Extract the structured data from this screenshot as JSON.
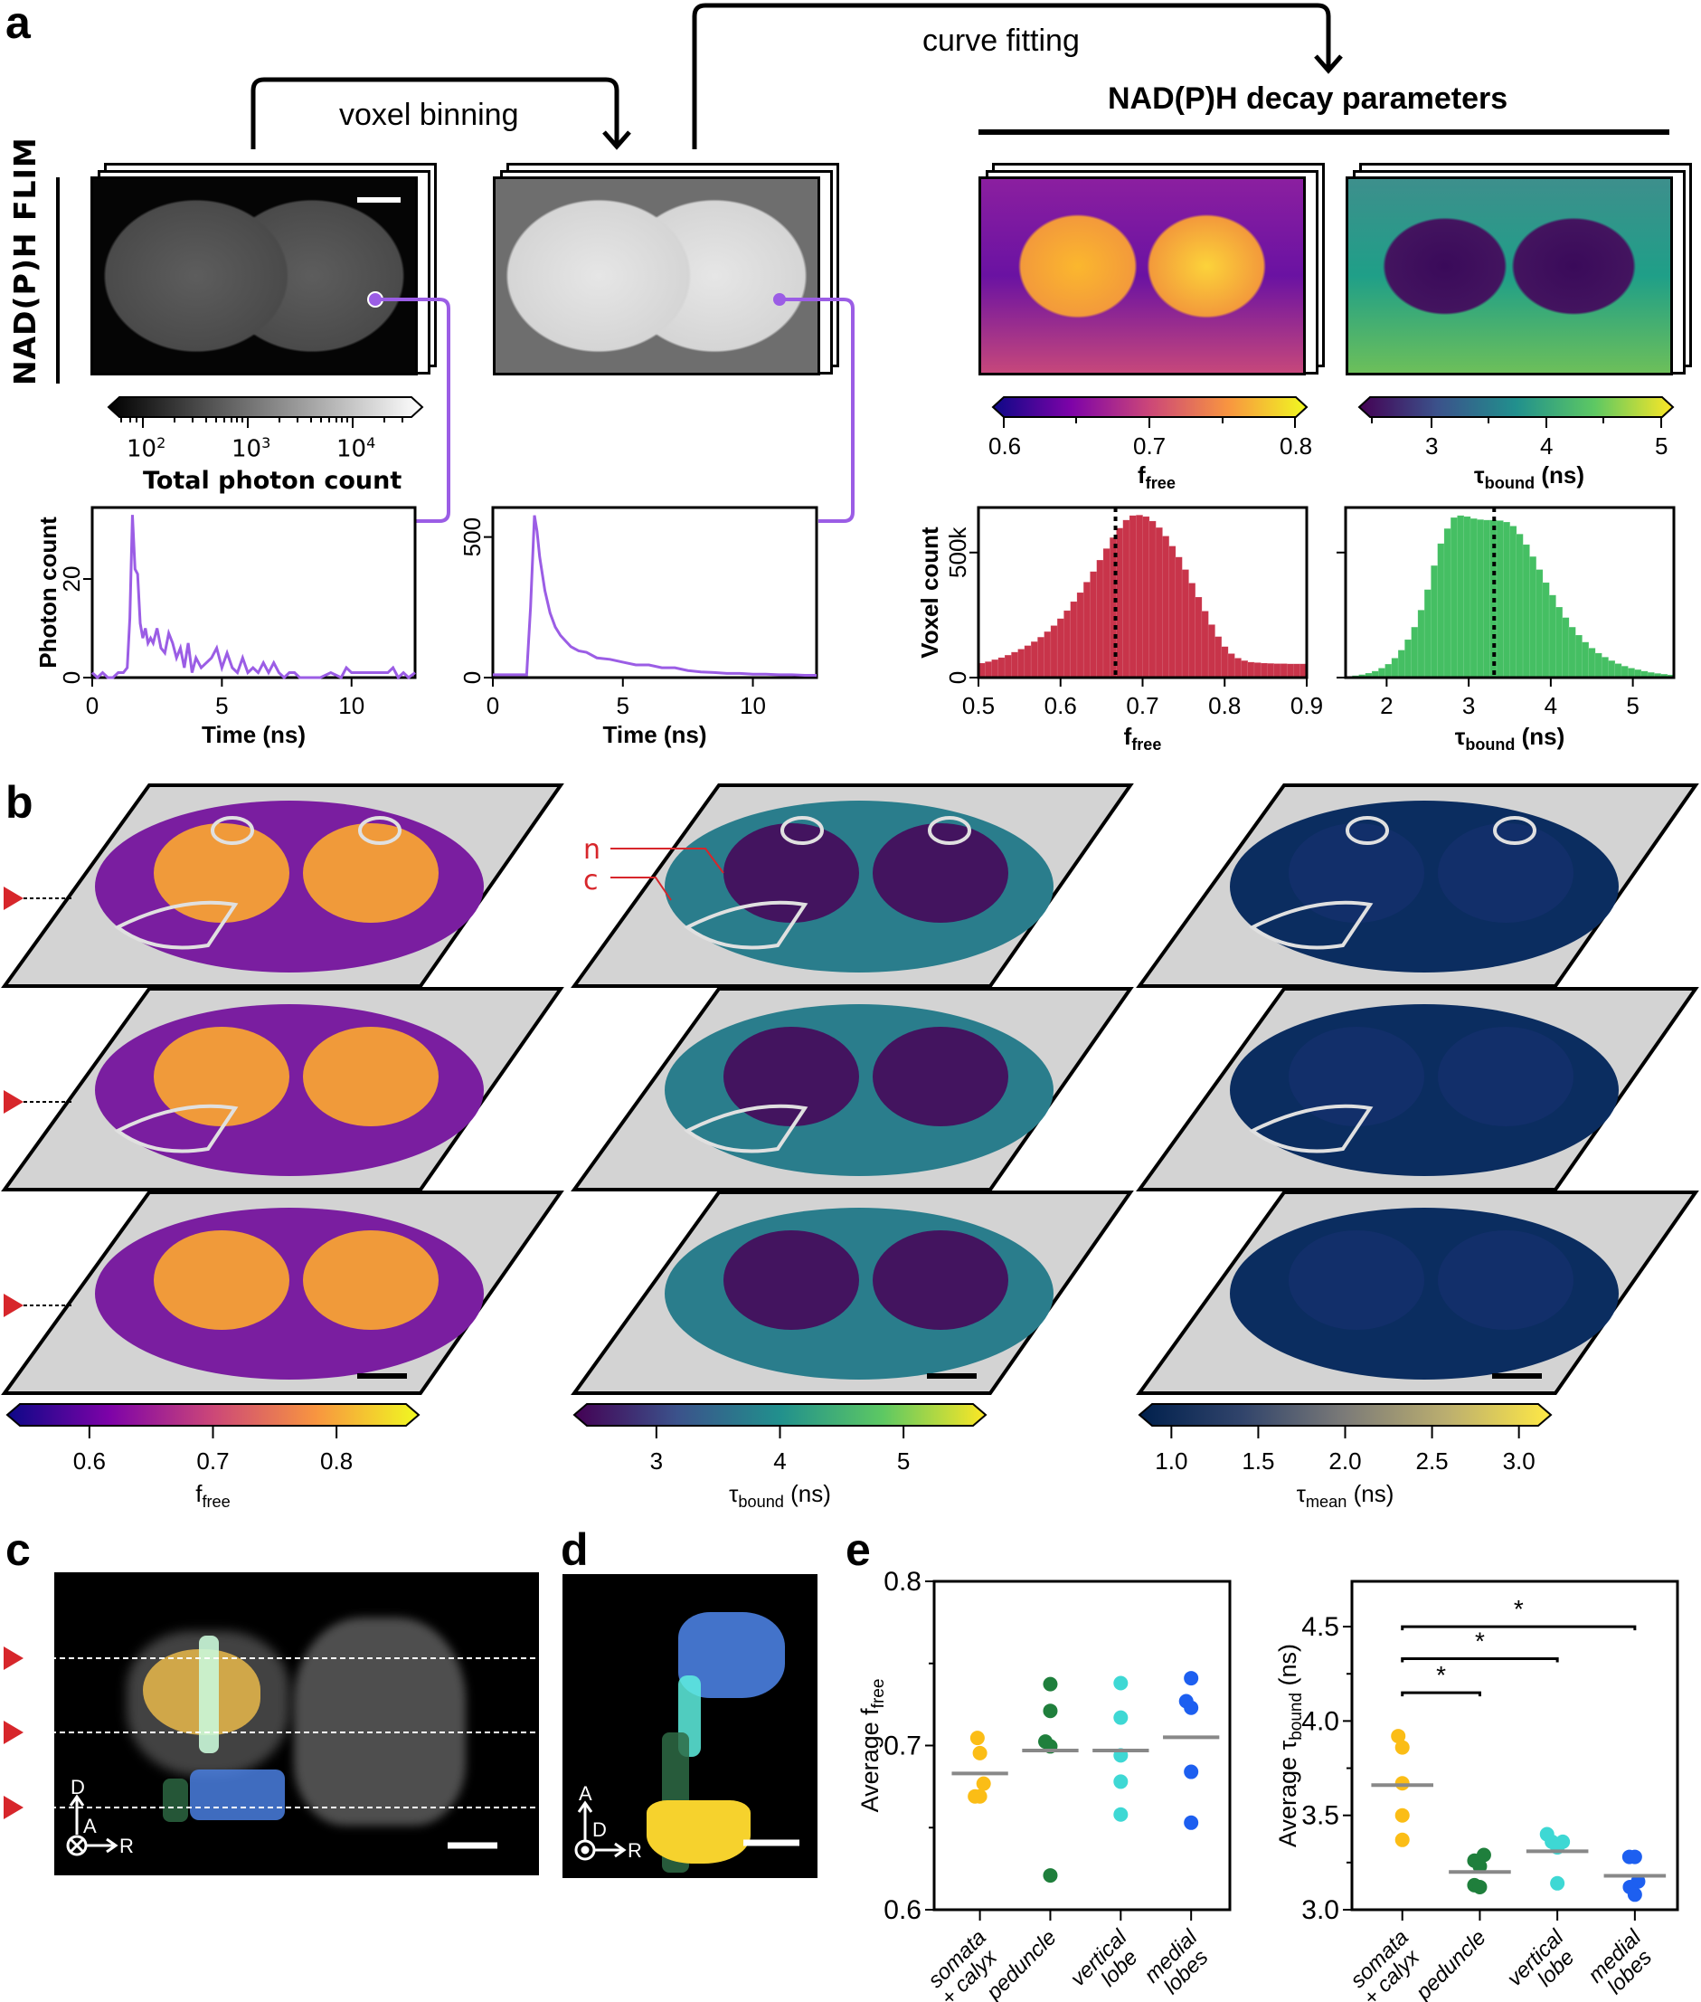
{
  "panel_labels": {
    "a": "a",
    "b": "b",
    "c": "c",
    "d": "d",
    "e": "e"
  },
  "panel_a": {
    "row_label": "NAD(P)H FLIM",
    "arrow_binning": "voxel binning",
    "arrow_fitting": "curve fitting",
    "params_header": "NAD(P)H decay parameters",
    "photon_colorbar": {
      "label": "Total photon count",
      "ticks": [
        "10",
        "10",
        "10"
      ],
      "exponents": [
        "2",
        "3",
        "4"
      ],
      "colors": [
        "#000000",
        "#ffffff"
      ]
    },
    "ffree_colorbar": {
      "ticks": [
        "0.6",
        "0.7",
        "0.8"
      ],
      "label_main": "f",
      "label_sub": "free"
    },
    "tau_colorbar": {
      "ticks": [
        "3",
        "4",
        "5"
      ],
      "label_main": "τ",
      "label_sub": "bound",
      "label_unit": " (ns)"
    },
    "trace_color": "#9b5de5"
  },
  "panel_b": {
    "annotation_n": "n",
    "annotation_c": "c",
    "annotation_color": "#d7262b",
    "marker_color": "#d7262b",
    "colorbars": [
      {
        "ticks": [
          "0.6",
          "0.7",
          "0.8"
        ],
        "label_main": "f",
        "label_sub": "free",
        "label_unit": ""
      },
      {
        "ticks": [
          "3",
          "4",
          "5"
        ],
        "label_main": "τ",
        "label_sub": "bound",
        "label_unit": " (ns)"
      },
      {
        "ticks": [
          "1.0",
          "1.5",
          "2.0",
          "2.5",
          "3.0"
        ],
        "label_main": "τ",
        "label_sub": "mean",
        "label_unit": " (ns)"
      }
    ]
  },
  "panel_c": {
    "axes": {
      "up": "D",
      "mid": "A",
      "right": "R"
    },
    "colors": {
      "somata": "#f5c242",
      "peduncle": "#2e7d4f",
      "vertical": "#5ef0e0",
      "medial": "#4a7fe0"
    }
  },
  "panel_d": {
    "axes": {
      "up": "A",
      "mid": "D",
      "right": "R"
    }
  },
  "chart_data": [
    {
      "id": "photon-trace-raw",
      "type": "line",
      "title": "",
      "xlabel": "Time (ns)",
      "ylabel": "Photon count",
      "xlim": [
        0,
        12.45
      ],
      "ylim": [
        0,
        34.5
      ],
      "xticks": [
        "0",
        "5",
        "10"
      ],
      "yticks": [
        "0",
        "20"
      ],
      "series": [
        {
          "name": "raw voxel decay",
          "color": "#9b5de5",
          "x": [
            0,
            0.2,
            0.4,
            0.6,
            0.8,
            1.0,
            1.2,
            1.35,
            1.45,
            1.55,
            1.65,
            1.75,
            1.85,
            1.95,
            2.05,
            2.15,
            2.25,
            2.35,
            2.5,
            2.65,
            2.8,
            2.95,
            3.1,
            3.25,
            3.4,
            3.55,
            3.7,
            3.85,
            4.0,
            4.2,
            4.4,
            4.6,
            4.8,
            5.0,
            5.2,
            5.4,
            5.6,
            5.8,
            6.0,
            6.2,
            6.4,
            6.6,
            6.8,
            7.0,
            7.2,
            7.4,
            7.6,
            7.8,
            8.0,
            8.4,
            8.8,
            9.2,
            9.6,
            9.8,
            10.0,
            10.5,
            11.0,
            11.4,
            11.6,
            11.8,
            12.0,
            12.2,
            12.45
          ],
          "y": [
            1,
            0,
            1,
            0,
            0,
            1,
            1,
            2,
            12,
            33,
            22,
            21,
            11,
            8,
            10,
            7,
            8,
            7,
            10,
            6,
            5,
            9,
            7,
            4,
            6,
            2,
            7,
            1,
            4,
            2,
            3,
            4,
            6,
            2,
            5,
            2,
            1,
            4,
            1,
            2,
            1,
            3,
            1,
            3,
            1,
            0,
            1,
            1,
            0,
            0,
            0,
            1,
            0,
            2,
            1,
            1,
            1,
            1,
            2,
            0,
            1,
            0,
            1
          ]
        }
      ]
    },
    {
      "id": "photon-trace-binned",
      "type": "line",
      "title": "",
      "xlabel": "Time (ns)",
      "ylabel": "",
      "xlim": [
        0,
        12.45
      ],
      "ylim": [
        0,
        605
      ],
      "xticks": [
        "0",
        "5",
        "10"
      ],
      "yticks": [
        "0",
        "500"
      ],
      "series": [
        {
          "name": "binned voxel decay",
          "color": "#9b5de5",
          "x": [
            0,
            0.5,
            1.0,
            1.3,
            1.45,
            1.6,
            1.7,
            1.8,
            2.0,
            2.2,
            2.4,
            2.6,
            2.8,
            3.0,
            3.3,
            3.6,
            4.0,
            4.5,
            5.0,
            5.5,
            6.0,
            6.5,
            7.0,
            7.5,
            8.0,
            8.5,
            9.0,
            9.5,
            10.0,
            10.5,
            11.0,
            11.5,
            12.0,
            12.45
          ],
          "y": [
            10,
            10,
            10,
            10,
            250,
            577,
            520,
            430,
            310,
            230,
            180,
            150,
            130,
            110,
            95,
            90,
            70,
            65,
            55,
            45,
            45,
            35,
            35,
            25,
            20,
            18,
            15,
            15,
            12,
            12,
            10,
            10,
            8,
            8
          ]
        }
      ]
    },
    {
      "id": "ffree-histogram",
      "type": "bar",
      "title": "",
      "xlabel": "f_free",
      "ylabel": "Voxel count",
      "xlim": [
        0.5,
        0.9
      ],
      "ylim": [
        0,
        680000
      ],
      "xticks": [
        "0.5",
        "0.6",
        "0.7",
        "0.8",
        "0.9"
      ],
      "yticks": [
        "0",
        "500k"
      ],
      "bar_color": "#c8344a",
      "median_line": 0.667,
      "bin_width": 0.008,
      "bin_start": 0.5,
      "values": [
        58000,
        64000,
        72000,
        80000,
        90000,
        102000,
        114000,
        128000,
        144000,
        162000,
        184000,
        208000,
        236000,
        268000,
        304000,
        340000,
        382000,
        424000,
        470000,
        516000,
        560000,
        598000,
        630000,
        648000,
        650000,
        644000,
        626000,
        600000,
        566000,
        526000,
        482000,
        432000,
        378000,
        322000,
        266000,
        212000,
        164000,
        124000,
        96000,
        78000,
        68000,
        62000,
        60000,
        58000,
        57000,
        56000,
        56000,
        55000,
        55000,
        55000
      ]
    },
    {
      "id": "tau-bound-histogram",
      "type": "bar",
      "title": "",
      "xlabel": "τ_bound (ns)",
      "ylabel": "",
      "xlim": [
        1.5,
        5.5
      ],
      "ylim": [
        0,
        680000
      ],
      "xticks": [
        "2",
        "3",
        "4",
        "5"
      ],
      "yticks": [
        "",
        ""
      ],
      "bar_color": "#45bf63",
      "median_line": 3.31,
      "bin_width": 0.08,
      "bin_start": 1.5,
      "values": [
        5000,
        8000,
        12000,
        18000,
        26000,
        38000,
        54000,
        78000,
        110000,
        152000,
        202000,
        270000,
        352000,
        448000,
        536000,
        596000,
        640000,
        648000,
        644000,
        636000,
        632000,
        630000,
        630000,
        628000,
        622000,
        606000,
        574000,
        532000,
        484000,
        432000,
        380000,
        330000,
        282000,
        240000,
        202000,
        170000,
        142000,
        118000,
        98000,
        82000,
        68000,
        56000,
        46000,
        38000,
        32000,
        26000,
        21000,
        17000,
        14000,
        11000
      ]
    },
    {
      "id": "avg-ffree-scatter",
      "type": "scatter",
      "title": "",
      "xlabel": "",
      "ylabel": "Average f_free",
      "ylim": [
        0.6,
        0.8
      ],
      "yticks": [
        "0.6",
        "0.7",
        "0.8"
      ],
      "categories": [
        "somata + calyx",
        "peduncle",
        "vertical lobe",
        "medial lobes"
      ],
      "category_lines": [
        [
          "somata",
          "+ calyx"
        ],
        [
          "peduncle"
        ],
        [
          "vertical",
          "lobe"
        ],
        [
          "medial",
          "lobes"
        ]
      ],
      "colors": [
        "#fbbd16",
        "#1f7f3c",
        "#3ed8d4",
        "#1d5ff0"
      ],
      "series": [
        {
          "name": "somata + calyx",
          "values": [
            0.7046,
            0.6954,
            0.6768,
            0.669,
            0.669
          ],
          "offsets": [
            -0.1,
            0.0,
            0.15,
            -0.2,
            0.0
          ],
          "mean": 0.683
        },
        {
          "name": "peduncle",
          "values": [
            0.7374,
            0.7211,
            0.7024,
            0.6995,
            0.6209
          ],
          "offsets": [
            0,
            0,
            -0.2,
            0,
            0
          ],
          "mean": 0.697
        },
        {
          "name": "vertical lobe",
          "values": [
            0.738,
            0.717,
            0.694,
            0.678,
            0.658
          ],
          "offsets": [
            0,
            0,
            0,
            0,
            0
          ],
          "mean": 0.697
        },
        {
          "name": "medial lobes",
          "values": [
            0.741,
            0.727,
            0.723,
            0.684,
            0.653
          ],
          "offsets": [
            0,
            -0.2,
            0,
            0,
            0
          ],
          "mean": 0.705
        }
      ]
    },
    {
      "id": "avg-tau-bound-scatter",
      "type": "scatter",
      "title": "",
      "xlabel": "",
      "ylabel": "Average τ_bound (ns)",
      "ylim": [
        3.0,
        4.74
      ],
      "yticks": [
        "3.0",
        "3.5",
        "4.0",
        "4.5"
      ],
      "categories": [
        "somata + calyx",
        "peduncle",
        "vertical lobe",
        "medial lobes"
      ],
      "category_lines": [
        [
          "somata",
          "+ calyx"
        ],
        [
          "peduncle"
        ],
        [
          "vertical",
          "lobe"
        ],
        [
          "medial",
          "lobes"
        ]
      ],
      "colors": [
        "#fbbd16",
        "#1f7f3c",
        "#3ed8d4",
        "#1d5ff0"
      ],
      "series": [
        {
          "name": "somata + calyx",
          "values": [
            3.92,
            3.86,
            3.67,
            3.5,
            3.37
          ],
          "offsets": [
            -0.15,
            0,
            0,
            0,
            0
          ],
          "mean": 3.66
        },
        {
          "name": "peduncle",
          "values": [
            3.29,
            3.26,
            3.23,
            3.13,
            3.12
          ],
          "offsets": [
            0.15,
            -0.2,
            0,
            -0.2,
            0
          ],
          "mean": 3.2
        },
        {
          "name": "vertical lobe",
          "values": [
            3.4,
            3.36,
            3.33,
            3.36,
            3.14
          ],
          "offsets": [
            -0.38,
            -0.2,
            0,
            0.2,
            0
          ],
          "mean": 3.31
        },
        {
          "name": "medial lobes",
          "values": [
            3.28,
            3.28,
            3.15,
            3.12,
            3.08
          ],
          "offsets": [
            -0.2,
            0,
            0.12,
            -0.18,
            0
          ],
          "mean": 3.18
        }
      ],
      "significance": [
        {
          "from": 0,
          "to": 1,
          "y": 4.15,
          "label": "*"
        },
        {
          "from": 0,
          "to": 2,
          "y": 4.33,
          "label": "*"
        },
        {
          "from": 0,
          "to": 3,
          "y": 4.5,
          "label": "*"
        }
      ]
    }
  ]
}
